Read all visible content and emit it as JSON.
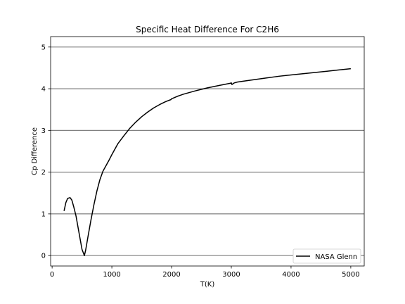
{
  "chart_data": {
    "type": "line",
    "title": "Specific Heat Difference For C2H6",
    "xlabel": "T(K)",
    "ylabel": "Cp Difference",
    "xlim": [
      -25,
      5225
    ],
    "ylim": [
      -0.25,
      5.25
    ],
    "xticks": [
      0,
      1000,
      2000,
      3000,
      4000,
      5000
    ],
    "yticks": [
      0,
      1,
      2,
      3,
      4,
      5
    ],
    "xtick_labels": [
      "0",
      "1000",
      "2000",
      "3000",
      "4000",
      "5000"
    ],
    "ytick_labels": [
      "0",
      "1",
      "2",
      "3",
      "4",
      "5"
    ],
    "grid": "horizontal",
    "legend_position": "lower-right",
    "colors": {
      "series": "#000000",
      "grid": "#808080"
    },
    "series": [
      {
        "name": "NASA Glenn",
        "x": [
          200,
          230,
          260,
          300,
          330,
          360,
          400,
          450,
          500,
          540,
          560,
          600,
          650,
          700,
          750,
          800,
          850,
          900,
          950,
          1000,
          1100,
          1200,
          1300,
          1400,
          1500,
          1600,
          1700,
          1800,
          1900,
          1990,
          2000,
          2020,
          2100,
          2200,
          2400,
          2600,
          2800,
          2980,
          3000,
          3010,
          3050,
          3100,
          3200,
          3400,
          3600,
          3800,
          4000,
          4200,
          4400,
          4600,
          4800,
          5000
        ],
        "y": [
          1.07,
          1.27,
          1.37,
          1.39,
          1.33,
          1.18,
          0.95,
          0.55,
          0.15,
          0.0,
          0.12,
          0.45,
          0.85,
          1.22,
          1.55,
          1.82,
          2.02,
          2.15,
          2.28,
          2.42,
          2.68,
          2.87,
          3.05,
          3.2,
          3.33,
          3.44,
          3.54,
          3.62,
          3.69,
          3.74,
          3.76,
          3.77,
          3.82,
          3.87,
          3.95,
          4.02,
          4.08,
          4.13,
          4.14,
          4.1,
          4.14,
          4.16,
          4.18,
          4.22,
          4.26,
          4.3,
          4.33,
          4.36,
          4.39,
          4.42,
          4.45,
          4.48
        ]
      }
    ]
  }
}
